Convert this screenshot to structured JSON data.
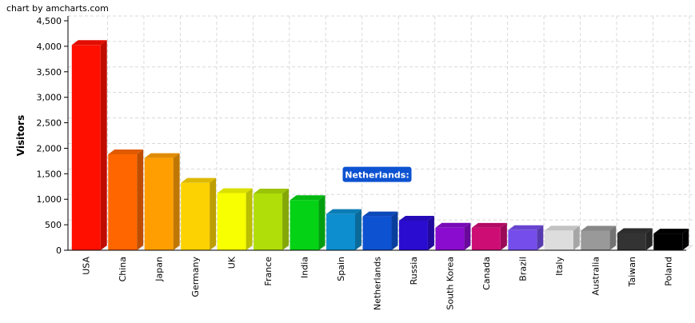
{
  "credit": "chart by amcharts.com",
  "chart_data": {
    "type": "bar",
    "title": "",
    "xlabel": "",
    "ylabel": "Visitors",
    "ylim": [
      0,
      4500
    ],
    "yticks": [
      0,
      500,
      1000,
      1500,
      2000,
      2500,
      3000,
      3500,
      4000,
      4500
    ],
    "ytick_labels": [
      "0",
      "500",
      "1,000",
      "1,500",
      "2,000",
      "2,500",
      "3,000",
      "3,500",
      "4,000",
      "4,500"
    ],
    "grid": true,
    "style": "3d-column",
    "categories": [
      "USA",
      "China",
      "Japan",
      "Germany",
      "UK",
      "France",
      "India",
      "Spain",
      "Netherlands",
      "Russia",
      "South Korea",
      "Canada",
      "Brazil",
      "Italy",
      "Australia",
      "Taiwan",
      "Poland"
    ],
    "values": [
      4025,
      1882,
      1809,
      1322,
      1122,
      1114,
      984,
      711,
      665,
      580,
      443,
      441,
      395,
      386,
      384,
      338,
      328
    ],
    "colors": [
      "#FF0F00",
      "#FF6600",
      "#FF9E01",
      "#FCD202",
      "#F8FF01",
      "#B0DE09",
      "#04D215",
      "#0D8ECF",
      "#0D52D1",
      "#2A0CD0",
      "#8A0CCF",
      "#CD0D74",
      "#754DEB",
      "#DDDDDD",
      "#999999",
      "#333333",
      "#000000"
    ],
    "tooltip": {
      "label": "Netherlands:",
      "category": "Netherlands",
      "color": "#0D52D1"
    }
  }
}
